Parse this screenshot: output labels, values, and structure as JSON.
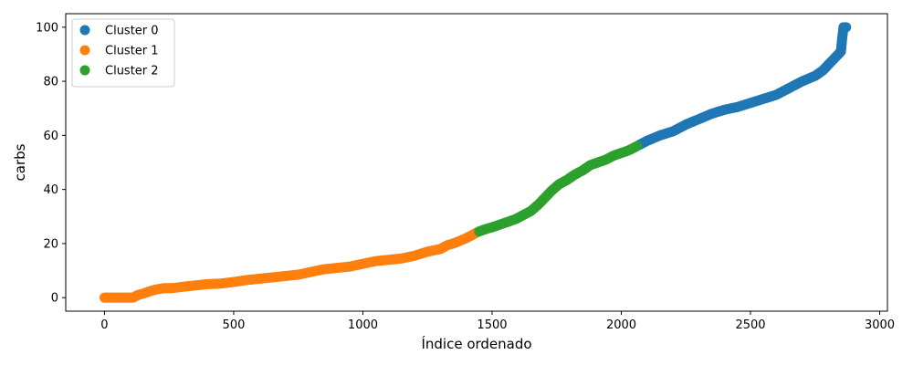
{
  "chart_data": {
    "type": "scatter",
    "title": "",
    "xlabel": "Índice ordenado",
    "ylabel": "carbs",
    "xlim": [
      -150,
      3030
    ],
    "ylim": [
      -5,
      105
    ],
    "xticks": [
      0,
      500,
      1000,
      1500,
      2000,
      2500,
      3000
    ],
    "yticks": [
      0,
      20,
      40,
      60,
      80,
      100
    ],
    "grid": false,
    "legend_position": "top-left",
    "series": [
      {
        "name": "Cluster 0",
        "color": "#1f77b4",
        "x": [
          2070,
          2100,
          2150,
          2200,
          2250,
          2300,
          2350,
          2400,
          2450,
          2500,
          2550,
          2600,
          2650,
          2700,
          2750,
          2780,
          2800,
          2830,
          2850,
          2855,
          2860,
          2870
        ],
        "y": [
          56.5,
          58,
          60,
          61.5,
          64,
          66,
          68,
          69.5,
          70.5,
          72,
          73.5,
          75,
          77.5,
          80,
          82,
          84,
          86,
          89,
          91,
          96,
          100,
          100
        ]
      },
      {
        "name": "Cluster 1",
        "color": "#ff7f0e",
        "x": [
          0,
          30,
          60,
          90,
          110,
          130,
          150,
          180,
          200,
          230,
          260,
          300,
          350,
          400,
          450,
          500,
          550,
          600,
          650,
          700,
          750,
          800,
          850,
          900,
          950,
          1000,
          1050,
          1100,
          1150,
          1200,
          1250,
          1300,
          1330,
          1350,
          1400,
          1440
        ],
        "y": [
          0,
          0,
          0,
          0,
          0,
          1,
          1.5,
          2.5,
          3,
          3.5,
          3.5,
          4,
          4.5,
          5,
          5.2,
          5.8,
          6.5,
          7,
          7.5,
          8,
          8.5,
          9.5,
          10.5,
          11,
          11.5,
          12.5,
          13.5,
          14,
          14.5,
          15.5,
          17,
          18,
          19.5,
          20,
          22,
          24
        ]
      },
      {
        "name": "Cluster 2",
        "color": "#2ca02c",
        "x": [
          1450,
          1480,
          1500,
          1530,
          1560,
          1590,
          1620,
          1650,
          1680,
          1700,
          1730,
          1760,
          1790,
          1820,
          1850,
          1880,
          1910,
          1940,
          1970,
          2000,
          2030,
          2060
        ],
        "y": [
          24.5,
          25.5,
          26,
          27,
          28,
          29,
          30.5,
          32,
          34.5,
          36.5,
          39.5,
          42,
          43.5,
          45.5,
          47,
          49,
          50,
          51,
          52.5,
          53.5,
          54.5,
          56
        ]
      }
    ]
  }
}
